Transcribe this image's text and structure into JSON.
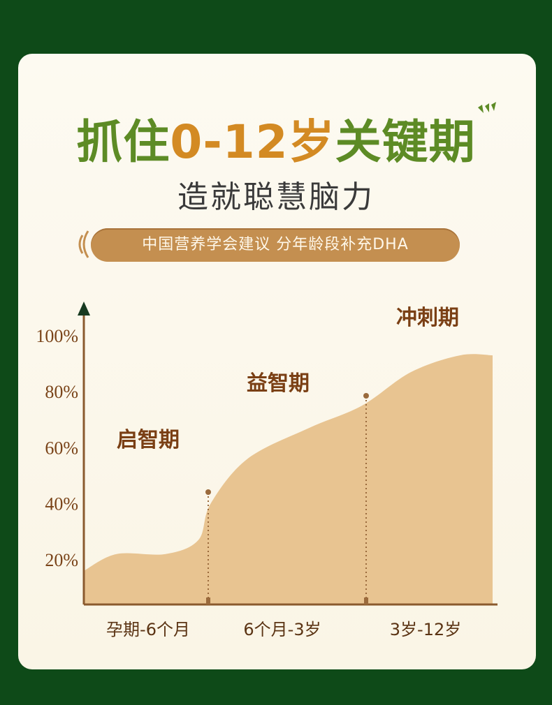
{
  "header": {
    "title_part1": "抓住",
    "title_part2": "0-12岁",
    "title_part3": "关键期",
    "subtitle": "造就聪慧脑力",
    "banner": "中国营养学会建议 分年龄段补充DHA"
  },
  "chart_data": {
    "type": "area",
    "title": "",
    "xlabel": "",
    "ylabel": "",
    "ylim": [
      0,
      100
    ],
    "yticks": [
      "20%",
      "40%",
      "60%",
      "80%",
      "100%"
    ],
    "ytick_values": [
      20,
      40,
      60,
      80,
      100
    ],
    "categories": [
      "孕期-6个月",
      "6个月-3岁",
      "3岁-12岁"
    ],
    "phases": [
      {
        "name": "启智期",
        "end_value": 40
      },
      {
        "name": "益智期",
        "end_value": 75
      },
      {
        "name": "冲刺期",
        "end_value": 93
      }
    ],
    "curve_points": [
      {
        "x": 0,
        "y": 16
      },
      {
        "x": 0.08,
        "y": 22
      },
      {
        "x": 0.2,
        "y": 22
      },
      {
        "x": 0.28,
        "y": 27
      },
      {
        "x": 0.31,
        "y": 40
      },
      {
        "x": 0.4,
        "y": 56
      },
      {
        "x": 0.55,
        "y": 67
      },
      {
        "x": 0.68,
        "y": 75
      },
      {
        "x": 0.8,
        "y": 87
      },
      {
        "x": 0.92,
        "y": 93
      },
      {
        "x": 1.0,
        "y": 93
      }
    ],
    "colors": {
      "fill": "#e8c491",
      "axis": "#8a5a2e",
      "marker": "#9a6a3c"
    },
    "grid": false
  }
}
